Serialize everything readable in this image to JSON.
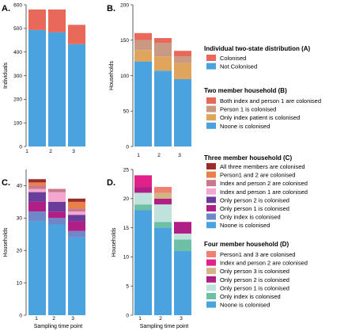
{
  "chart_data": [
    {
      "panel": "A.",
      "type": "bar",
      "stacked": true,
      "categories": [
        "1",
        "2",
        "3"
      ],
      "ylabel": "Individuals",
      "xlabel": "",
      "ylim": [
        0,
        600
      ],
      "yticks": [
        0,
        100,
        200,
        300,
        400,
        500,
        600
      ],
      "series": [
        {
          "name": "Not Colonised",
          "color": "#4aa3df",
          "values": [
            493,
            483,
            433
          ]
        },
        {
          "name": "Colonised",
          "color": "#e8695a",
          "values": [
            87,
            97,
            82
          ]
        }
      ]
    },
    {
      "panel": "B.",
      "type": "bar",
      "stacked": true,
      "categories": [
        "1",
        "2",
        "3"
      ],
      "ylabel": "Households",
      "xlabel": "",
      "ylim": [
        0,
        200
      ],
      "yticks": [
        0,
        50,
        100,
        150,
        200
      ],
      "series": [
        {
          "name": "Noone is colonised",
          "color": "#4aa3df",
          "values": [
            120,
            107,
            95
          ]
        },
        {
          "name": "Only index patient  is colonised",
          "color": "#dfa55d",
          "values": [
            16,
            20,
            23
          ]
        },
        {
          "name": "Person 1 is colonised",
          "color": "#c99a83",
          "values": [
            14,
            19,
            9
          ]
        },
        {
          "name": "Both index and person 1 are colonised",
          "color": "#e8695a",
          "values": [
            10,
            7,
            8
          ]
        }
      ]
    },
    {
      "panel": "C.",
      "type": "bar",
      "stacked": true,
      "categories": [
        "1",
        "2",
        "3"
      ],
      "ylabel": "Households",
      "xlabel": "Sampling time point",
      "ylim": [
        0,
        45
      ],
      "yticks": [
        0,
        10,
        20,
        30,
        40
      ],
      "series": [
        {
          "name": "Noone is colonised",
          "color": "#4aa3df",
          "values": [
            29,
            28,
            24
          ]
        },
        {
          "name": "Only index is colonised",
          "color": "#6f87c9",
          "values": [
            3,
            2,
            2
          ]
        },
        {
          "name": "Only person 1 is colonised",
          "color": "#b01f86",
          "values": [
            3,
            2,
            3
          ]
        },
        {
          "name": "Only person 2 is colonised",
          "color": "#6a3d9a",
          "values": [
            3,
            3,
            2
          ]
        },
        {
          "name": "Index and person 1 are colonised",
          "color": "#f4a6cf",
          "values": [
            1,
            3,
            1
          ]
        },
        {
          "name": "Index and person 2 are colonised",
          "color": "#c9778a",
          "values": [
            1,
            1,
            1
          ]
        },
        {
          "name": "Person1 and 2 are colonised",
          "color": "#e8804a",
          "values": [
            1,
            0,
            2
          ]
        },
        {
          "name": "All three members are colonised",
          "color": "#9b2c2c",
          "values": [
            1,
            0,
            1
          ]
        }
      ]
    },
    {
      "panel": "D.",
      "type": "bar",
      "stacked": true,
      "categories": [
        "1",
        "2",
        "3"
      ],
      "ylabel": "Households",
      "xlabel": "Sampling time point",
      "ylim": [
        0,
        25
      ],
      "yticks": [
        0,
        5,
        10,
        15,
        20,
        25
      ],
      "series": [
        {
          "name": "Noone is colonised",
          "color": "#4aa3df",
          "values": [
            18,
            15,
            11
          ]
        },
        {
          "name": "Only index is colonised",
          "color": "#6dbfa6",
          "values": [
            1,
            1,
            2
          ]
        },
        {
          "name": "Only person 1 is colonised",
          "color": "#bfe3dc",
          "values": [
            2,
            3,
            1
          ]
        },
        {
          "name": "Only person 2 is colonised",
          "color": "#b01f86",
          "values": [
            1,
            1,
            2
          ]
        },
        {
          "name": "Only person 3 is colonised",
          "color": "#d4b483",
          "values": [
            0,
            1,
            0
          ]
        },
        {
          "name": "Index and person 2 are colonised",
          "color": "#e0218a",
          "values": [
            2,
            0,
            0
          ]
        },
        {
          "name": "Person1 and 3 are colonised",
          "color": "#f08070",
          "values": [
            0,
            1,
            0
          ]
        }
      ]
    }
  ],
  "legends": [
    {
      "title": "Individual two-state distribution (A)",
      "items": [
        {
          "label": "Colonised",
          "color": "#e8695a"
        },
        {
          "label": "Not Colonised",
          "color": "#4aa3df"
        }
      ]
    },
    {
      "title": "Two member household (B)",
      "items": [
        {
          "label": "Both index and person 1 are colonised",
          "color": "#e8695a"
        },
        {
          "label": "Person 1 is colonised",
          "color": "#c99a83"
        },
        {
          "label": "Only index patient  is colonised",
          "color": "#dfa55d"
        },
        {
          "label": "Noone is colonised",
          "color": "#4aa3df"
        }
      ]
    },
    {
      "title": "Three member household (C)",
      "items": [
        {
          "label": "All three members are colonised",
          "color": "#9b2c2c"
        },
        {
          "label": "Person1 and 2 are colonised",
          "color": "#e8804a"
        },
        {
          "label": "Index and person 2 are colonised",
          "color": "#c9778a"
        },
        {
          "label": "Index and person 1 are colonised",
          "color": "#f4a6cf"
        },
        {
          "label": "Only person 2 is colonised",
          "color": "#6a3d9a"
        },
        {
          "label": "Only person 1 is colonised",
          "color": "#b01f86"
        },
        {
          "label": "Only index is colonised",
          "color": "#6f87c9"
        },
        {
          "label": "Noone is colonised",
          "color": "#4aa3df"
        }
      ]
    },
    {
      "title": "Four member household (D)",
      "items": [
        {
          "label": "Person1 and 3 are colonised",
          "color": "#f08070"
        },
        {
          "label": "Index and person 2 are colonised",
          "color": "#e0218a"
        },
        {
          "label": "Only person 3 is colonised",
          "color": "#d4b483"
        },
        {
          "label": "Only person 2 is colonised",
          "color": "#b01f86"
        },
        {
          "label": "Only person 1 is colonised",
          "color": "#bfe3dc"
        },
        {
          "label": "Only index is colonised",
          "color": "#6dbfa6"
        },
        {
          "label": "Noone is colonised",
          "color": "#4aa3df"
        }
      ]
    }
  ]
}
